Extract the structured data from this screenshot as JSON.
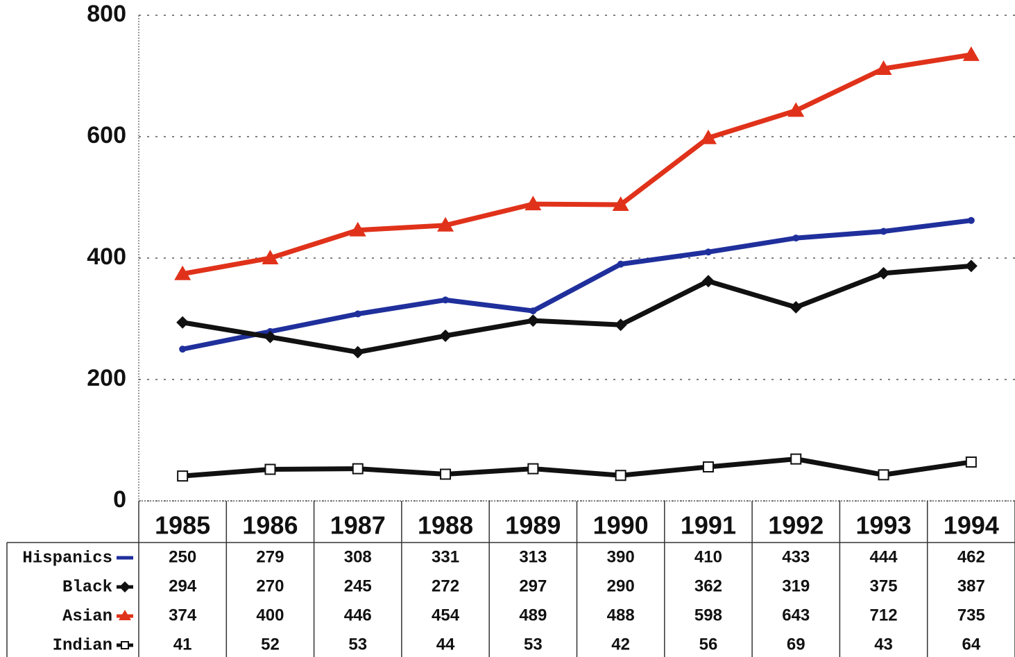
{
  "chart_data": {
    "type": "line",
    "categories": [
      "1985",
      "1986",
      "1987",
      "1988",
      "1989",
      "1990",
      "1991",
      "1992",
      "1993",
      "1994"
    ],
    "series": [
      {
        "name": "Hispanics",
        "color": "#1f2f9c",
        "marker": "circle",
        "values": [
          250,
          279,
          308,
          331,
          313,
          390,
          410,
          433,
          444,
          462
        ]
      },
      {
        "name": "Black",
        "color": "#111111",
        "marker": "diamond",
        "values": [
          294,
          270,
          245,
          272,
          297,
          290,
          362,
          319,
          375,
          387
        ]
      },
      {
        "name": "Asian",
        "color": "#e0321a",
        "marker": "triangle",
        "values": [
          374,
          400,
          446,
          454,
          489,
          488,
          598,
          643,
          712,
          735
        ]
      },
      {
        "name": "Indian",
        "color": "#111111",
        "marker": "square",
        "values": [
          41,
          52,
          53,
          44,
          53,
          42,
          56,
          69,
          43,
          64
        ]
      }
    ],
    "ylim": [
      0,
      800
    ],
    "yticks": [
      0,
      200,
      400,
      600,
      800
    ],
    "grid": true
  }
}
